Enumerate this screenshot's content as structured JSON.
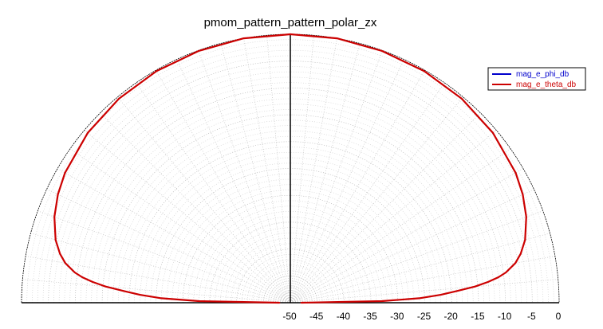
{
  "chart_data": {
    "type": "line",
    "polar": true,
    "title": "pmom_pattern_pattern_polar_zx",
    "radial_axis": {
      "range": [
        -50,
        0
      ],
      "ticks": [
        -50,
        -45,
        -40,
        -35,
        -30,
        -25,
        -20,
        -15,
        -10,
        -5,
        0
      ],
      "tick_labels": [
        "-50",
        "-45",
        "-40",
        "-35",
        "-30",
        "-25",
        "-20",
        "-15",
        "-10",
        "-5",
        "0"
      ]
    },
    "angular_range_deg": [
      0,
      180
    ],
    "grid": true,
    "legend": {
      "position": "top-right"
    },
    "series": [
      {
        "name": "mag_e_phi_db",
        "color": "#0000cc",
        "points": []
      },
      {
        "name": "mag_e_theta_db",
        "color": "#cc0000",
        "points": [
          {
            "angle": 0,
            "r": -48
          },
          {
            "angle": 1,
            "r": -33
          },
          {
            "angle": 2,
            "r": -26
          },
          {
            "angle": 3,
            "r": -22
          },
          {
            "angle": 4,
            "r": -19
          },
          {
            "angle": 5,
            "r": -15.5
          },
          {
            "angle": 6,
            "r": -13
          },
          {
            "angle": 7,
            "r": -11
          },
          {
            "angle": 8,
            "r": -9.5
          },
          {
            "angle": 10,
            "r": -7.5
          },
          {
            "angle": 12,
            "r": -6.2
          },
          {
            "angle": 15,
            "r": -4.8
          },
          {
            "angle": 20,
            "r": -3.3
          },
          {
            "angle": 25,
            "r": -2.3
          },
          {
            "angle": 30,
            "r": -1.6
          },
          {
            "angle": 40,
            "r": -0.8
          },
          {
            "angle": 50,
            "r": -0.4
          },
          {
            "angle": 60,
            "r": -0.2
          },
          {
            "angle": 70,
            "r": -0.1
          },
          {
            "angle": 80,
            "r": 0
          },
          {
            "angle": 90,
            "r": 0
          },
          {
            "angle": 100,
            "r": 0
          },
          {
            "angle": 110,
            "r": -0.1
          },
          {
            "angle": 120,
            "r": -0.2
          },
          {
            "angle": 130,
            "r": -0.4
          },
          {
            "angle": 140,
            "r": -0.8
          },
          {
            "angle": 150,
            "r": -1.6
          },
          {
            "angle": 155,
            "r": -2.3
          },
          {
            "angle": 160,
            "r": -3.3
          },
          {
            "angle": 165,
            "r": -4.8
          },
          {
            "angle": 168,
            "r": -6.2
          },
          {
            "angle": 170,
            "r": -7.5
          },
          {
            "angle": 172,
            "r": -9.5
          },
          {
            "angle": 173,
            "r": -11
          },
          {
            "angle": 174,
            "r": -13
          },
          {
            "angle": 175,
            "r": -15.5
          },
          {
            "angle": 176,
            "r": -19
          },
          {
            "angle": 177,
            "r": -22
          },
          {
            "angle": 178,
            "r": -26
          },
          {
            "angle": 179,
            "r": -33
          },
          {
            "angle": 180,
            "r": -48
          }
        ]
      }
    ]
  }
}
